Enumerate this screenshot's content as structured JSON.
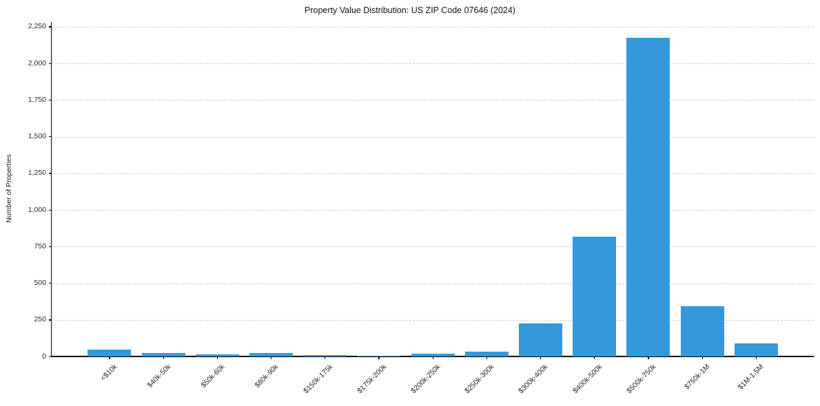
{
  "chart_data": {
    "type": "bar",
    "title": "Property Value Distribution: US ZIP Code 07646 (2024)",
    "xlabel": "",
    "ylabel": "Number of Properties",
    "categories": [
      "<$10k",
      "$40k-50k",
      "$50k-60k",
      "$80k-90k",
      "$150k-175k",
      "$175k-200k",
      "$200k-250k",
      "$250k-300k",
      "$300k-400k",
      "$400k-500k",
      "$500k-750k",
      "$750k-1M",
      "$1M-1.5M"
    ],
    "values": [
      45,
      25,
      13,
      25,
      8,
      6,
      20,
      31,
      225,
      815,
      2175,
      345,
      88
    ],
    "ylim": [
      0,
      2282
    ],
    "yticks": [
      0,
      250,
      500,
      750,
      1000,
      1250,
      1500,
      1750,
      2000,
      2250
    ],
    "ytick_labels": [
      "0",
      "250",
      "500",
      "750",
      "1,000",
      "1,250",
      "1,500",
      "1,750",
      "2,000",
      "2,250"
    ],
    "bar_color": "#3498db",
    "grid": "horizontal dashed, grid on",
    "grid_color": "#c9c9c9",
    "legend": "none",
    "x_tick_rotation_deg": 45
  }
}
